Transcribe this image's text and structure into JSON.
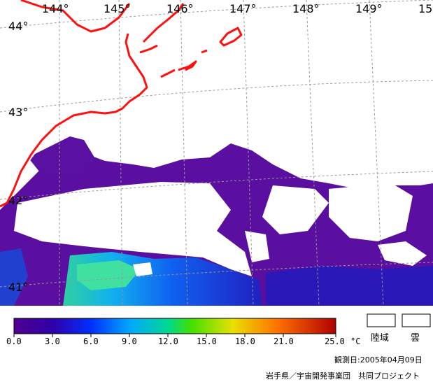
{
  "map": {
    "lon_labels": [
      "144°",
      "145°",
      "146°",
      "147°",
      "148°",
      "149°",
      "15"
    ],
    "lat_labels": [
      "44°",
      "43°",
      "42°",
      "41°"
    ]
  },
  "legend": {
    "ticks": [
      "0.0",
      "3.0",
      "6.0",
      "9.0",
      "12.0",
      "15.0",
      "18.0",
      "21.0",
      "25.0"
    ],
    "unit": "°C",
    "land_label": "陸域",
    "cloud_label": "雲",
    "colors": [
      "#500090",
      "#3000a8",
      "#0030ff",
      "#00a8ff",
      "#00d890",
      "#40e000",
      "#e8e000",
      "#ff7000",
      "#b00000"
    ]
  },
  "footer": {
    "observation_date": "観測日:2005年04月09日",
    "credit": "岩手県／宇宙開発事業団　共同プロジェクト"
  }
}
